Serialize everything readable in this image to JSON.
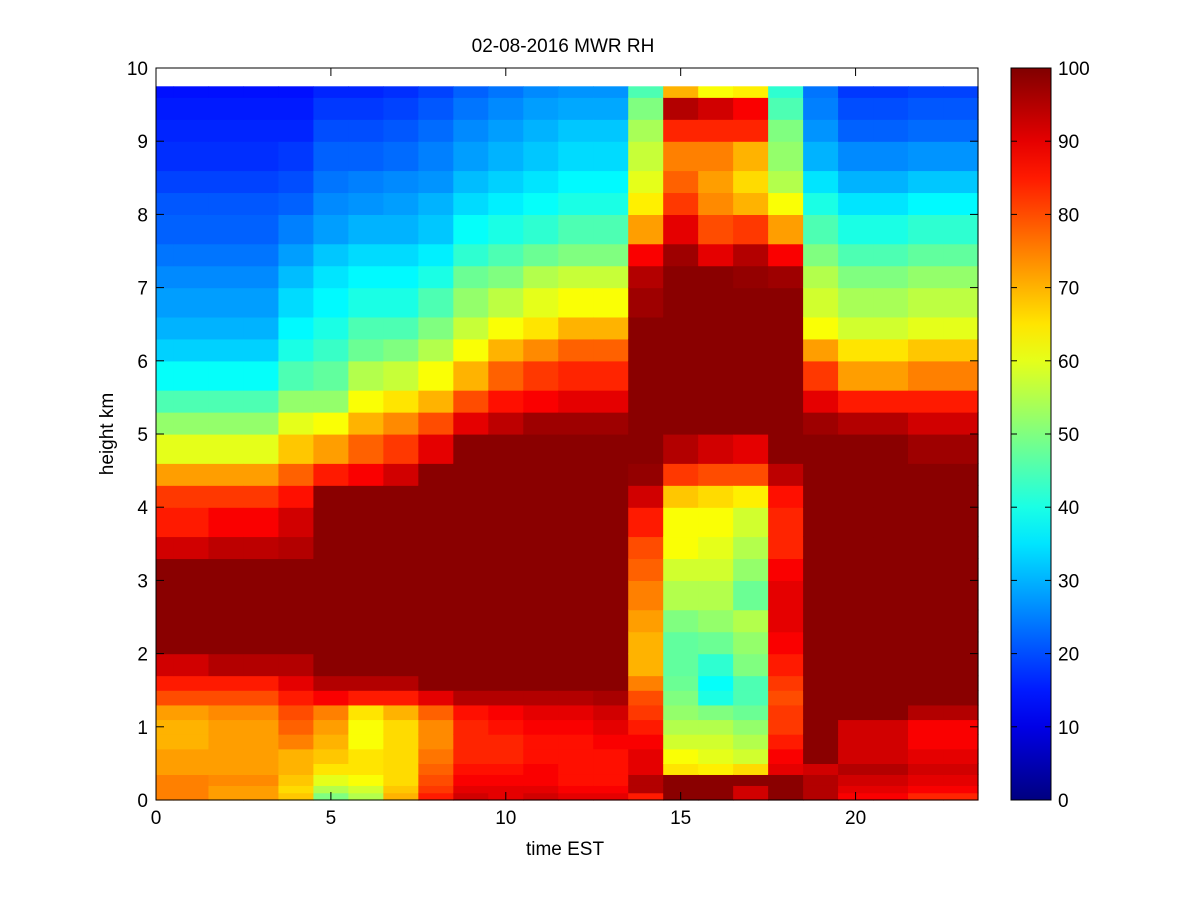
{
  "chart_data": {
    "type": "heatmap",
    "title": "02-08-2016 MWR RH",
    "xlabel": "time EST",
    "ylabel": "height km",
    "xlim": [
      0,
      23.5
    ],
    "ylim": [
      0,
      10
    ],
    "x_ticks": [
      0,
      5,
      10,
      15,
      20
    ],
    "y_ticks": [
      0,
      1,
      2,
      3,
      4,
      5,
      6,
      7,
      8,
      9,
      10
    ],
    "colorbar": {
      "min": 0,
      "max": 100,
      "ticks": [
        0,
        10,
        20,
        30,
        40,
        50,
        60,
        70,
        80,
        90,
        100
      ],
      "colormap": "jet"
    },
    "grid": false,
    "time_bin_width_hours": 1,
    "time_bin_centers": [
      0.5,
      1.5,
      2.5,
      3.5,
      4.5,
      5.5,
      6.5,
      7.5,
      8.5,
      9.5,
      10.5,
      11.5,
      12.5,
      13.5,
      14.5,
      15.5,
      16.5,
      17.5,
      18.5,
      19.5,
      20.5,
      21.5,
      22.5,
      23.5
    ],
    "height_levels_km": [
      0,
      0.1,
      0.2,
      0.35,
      0.5,
      0.7,
      0.9,
      1.1,
      1.3,
      1.5,
      1.7,
      2.0,
      2.3,
      2.6,
      3.0,
      3.3,
      3.6,
      4.0,
      4.3,
      4.6,
      5.0,
      5.3,
      5.6,
      6.0,
      6.3,
      6.6,
      7.0,
      7.3,
      7.6,
      8.0,
      8.3,
      8.6,
      9.0,
      9.3,
      9.6,
      9.75
    ],
    "rh_profiles_percent": [
      [
        75,
        75,
        75,
        72,
        72,
        70,
        70,
        72,
        80,
        85,
        92,
        99,
        99,
        99,
        99,
        92,
        85,
        82,
        72,
        60,
        52,
        45,
        38,
        33,
        30,
        28,
        26,
        24,
        22,
        21,
        19,
        17,
        16,
        15,
        14
      ],
      [
        75,
        75,
        75,
        72,
        72,
        70,
        70,
        72,
        80,
        85,
        92,
        99,
        99,
        99,
        99,
        92,
        85,
        82,
        72,
        60,
        52,
        45,
        38,
        33,
        30,
        28,
        26,
        24,
        22,
        21,
        19,
        17,
        16,
        15,
        14
      ],
      [
        72,
        72,
        74,
        72,
        72,
        72,
        72,
        74,
        80,
        85,
        95,
        99,
        99,
        99,
        99,
        94,
        88,
        82,
        72,
        60,
        52,
        45,
        38,
        33,
        30,
        28,
        26,
        24,
        22,
        21,
        19,
        17,
        16,
        15,
        14
      ],
      [
        72,
        72,
        74,
        72,
        72,
        72,
        72,
        74,
        80,
        85,
        95,
        99,
        99,
        99,
        99,
        94,
        88,
        82,
        72,
        60,
        52,
        45,
        38,
        33,
        30,
        28,
        26,
        24,
        22,
        21,
        19,
        17,
        16,
        15,
        14
      ],
      [
        68,
        66,
        68,
        70,
        70,
        75,
        78,
        80,
        85,
        90,
        95,
        99,
        99,
        99,
        99,
        95,
        92,
        86,
        78,
        68,
        60,
        52,
        45,
        40,
        37,
        34,
        31,
        28,
        25,
        22,
        20,
        18,
        16,
        15,
        14
      ],
      [
        50,
        55,
        60,
        65,
        68,
        70,
        72,
        75,
        88,
        95,
        99,
        99,
        99,
        99,
        99,
        99,
        99,
        99,
        85,
        72,
        62,
        52,
        47,
        43,
        40,
        37,
        35,
        32,
        28,
        26,
        24,
        22,
        20,
        18,
        16
      ],
      [
        55,
        58,
        62,
        65,
        65,
        62,
        62,
        65,
        85,
        95,
        99,
        99,
        99,
        99,
        99,
        99,
        99,
        99,
        88,
        78,
        70,
        62,
        55,
        48,
        45,
        40,
        37,
        34,
        30,
        27,
        25,
        22,
        20,
        18,
        16
      ],
      [
        70,
        68,
        66,
        66,
        66,
        66,
        66,
        70,
        85,
        95,
        99,
        99,
        99,
        99,
        99,
        99,
        99,
        99,
        92,
        82,
        74,
        65,
        57,
        50,
        45,
        40,
        37,
        34,
        30,
        28,
        26,
        23,
        21,
        19,
        17
      ],
      [
        85,
        82,
        80,
        78,
        76,
        74,
        74,
        78,
        90,
        99,
        99,
        99,
        99,
        99,
        99,
        99,
        99,
        99,
        99,
        90,
        80,
        70,
        62,
        55,
        50,
        45,
        40,
        36,
        32,
        30,
        27,
        25,
        23,
        21,
        19
      ],
      [
        92,
        90,
        88,
        86,
        84,
        84,
        84,
        86,
        95,
        99,
        99,
        99,
        99,
        99,
        99,
        99,
        99,
        99,
        99,
        99,
        90,
        80,
        70,
        62,
        57,
        52,
        48,
        42,
        38,
        34,
        31,
        28,
        26,
        24,
        22
      ],
      [
        90,
        90,
        88,
        86,
        84,
        84,
        86,
        88,
        95,
        99,
        99,
        99,
        99,
        99,
        99,
        99,
        99,
        99,
        99,
        99,
        94,
        86,
        78,
        70,
        62,
        56,
        50,
        45,
        40,
        36,
        33,
        30,
        28,
        26,
        24
      ],
      [
        92,
        90,
        88,
        88,
        86,
        86,
        88,
        90,
        95,
        99,
        99,
        99,
        99,
        99,
        99,
        99,
        99,
        99,
        99,
        99,
        97,
        88,
        82,
        74,
        65,
        60,
        55,
        48,
        42,
        38,
        35,
        32,
        30,
        28,
        26
      ],
      [
        90,
        88,
        86,
        86,
        86,
        86,
        88,
        90,
        95,
        99,
        99,
        99,
        99,
        99,
        99,
        99,
        99,
        99,
        99,
        99,
        97,
        90,
        84,
        78,
        70,
        62,
        57,
        50,
        45,
        40,
        37,
        34,
        32,
        29,
        27
      ],
      [
        90,
        88,
        86,
        86,
        86,
        88,
        90,
        92,
        96,
        99,
        99,
        99,
        99,
        99,
        99,
        99,
        99,
        99,
        99,
        99,
        97,
        90,
        84,
        78,
        70,
        62,
        57,
        50,
        45,
        40,
        37,
        34,
        32,
        29,
        27
      ],
      [
        85,
        95,
        95,
        90,
        90,
        88,
        85,
        82,
        80,
        75,
        70,
        70,
        72,
        75,
        78,
        80,
        85,
        92,
        98,
        99,
        99,
        99,
        99,
        99,
        99,
        97,
        95,
        88,
        72,
        64,
        60,
        57,
        54,
        50,
        45
      ],
      [
        99,
        99,
        99,
        65,
        62,
        58,
        55,
        52,
        50,
        48,
        47,
        47,
        50,
        55,
        58,
        62,
        62,
        68,
        82,
        95,
        99,
        99,
        99,
        99,
        99,
        99,
        99,
        97,
        90,
        82,
        78,
        75,
        84,
        95,
        70
      ],
      [
        99,
        99,
        99,
        64,
        60,
        58,
        55,
        50,
        40,
        38,
        42,
        48,
        52,
        55,
        58,
        60,
        62,
        66,
        80,
        92,
        99,
        99,
        99,
        99,
        99,
        99,
        99,
        90,
        80,
        74,
        72,
        75,
        84,
        92,
        62
      ],
      [
        92,
        92,
        99,
        66,
        58,
        55,
        52,
        48,
        45,
        45,
        50,
        52,
        55,
        48,
        52,
        55,
        58,
        64,
        80,
        90,
        99,
        99,
        99,
        99,
        99,
        99,
        98,
        95,
        82,
        70,
        66,
        70,
        84,
        88,
        64
      ],
      [
        99,
        99,
        99,
        90,
        88,
        85,
        82,
        82,
        80,
        82,
        85,
        88,
        90,
        90,
        88,
        84,
        84,
        86,
        94,
        99,
        99,
        99,
        99,
        99,
        99,
        99,
        97,
        88,
        72,
        62,
        55,
        52,
        50,
        45,
        42
      ],
      [
        95,
        95,
        95,
        92,
        99,
        99,
        99,
        99,
        99,
        99,
        99,
        99,
        99,
        99,
        99,
        99,
        99,
        99,
        99,
        99,
        97,
        90,
        82,
        72,
        62,
        58,
        55,
        50,
        45,
        40,
        35,
        30,
        27,
        25,
        24
      ],
      [
        88,
        90,
        92,
        95,
        92,
        92,
        92,
        99,
        99,
        99,
        99,
        99,
        99,
        99,
        99,
        99,
        99,
        99,
        99,
        99,
        95,
        85,
        72,
        65,
        58,
        54,
        50,
        45,
        40,
        35,
        30,
        26,
        22,
        20,
        18
      ],
      [
        88,
        90,
        92,
        95,
        92,
        92,
        92,
        99,
        99,
        99,
        99,
        99,
        99,
        99,
        99,
        99,
        99,
        99,
        99,
        99,
        95,
        85,
        72,
        65,
        58,
        54,
        50,
        45,
        40,
        35,
        30,
        26,
        22,
        20,
        18
      ],
      [
        84,
        88,
        90,
        92,
        90,
        88,
        88,
        95,
        99,
        99,
        99,
        99,
        99,
        99,
        99,
        99,
        99,
        99,
        99,
        97,
        92,
        85,
        75,
        68,
        60,
        56,
        52,
        47,
        42,
        37,
        32,
        27,
        23,
        21,
        19
      ],
      [
        84,
        88,
        90,
        92,
        90,
        88,
        88,
        95,
        99,
        99,
        99,
        99,
        99,
        99,
        99,
        99,
        99,
        99,
        99,
        97,
        92,
        85,
        75,
        68,
        60,
        56,
        52,
        47,
        42,
        37,
        32,
        27,
        23,
        21,
        19
      ]
    ]
  }
}
